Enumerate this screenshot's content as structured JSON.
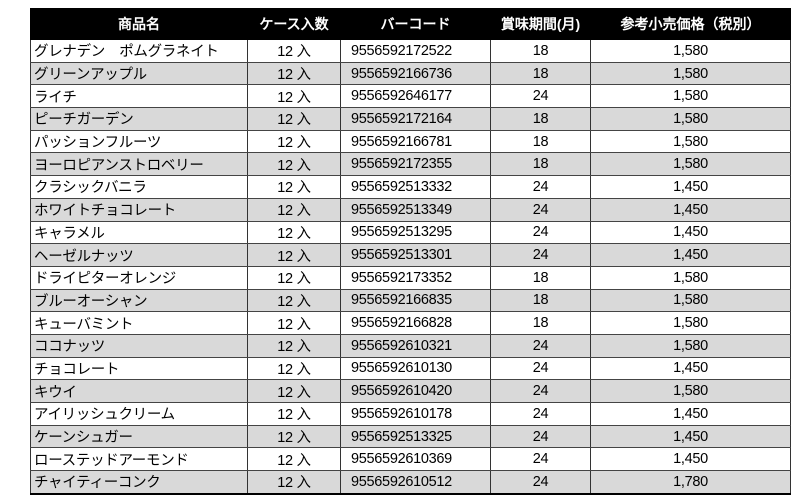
{
  "headers": [
    "商品名",
    "ケース入数",
    "バーコード",
    "賞味期間(月)",
    "参考小売価格（税別）"
  ],
  "rows": [
    {
      "name": "グレナデン　ポムグラネイト",
      "case": "12 入",
      "code": "9556592172522",
      "shelf": "18",
      "price": "1,580"
    },
    {
      "name": "グリーンアップル",
      "case": "12 入",
      "code": "9556592166736",
      "shelf": "18",
      "price": "1,580"
    },
    {
      "name": "ライチ",
      "case": "12 入",
      "code": "9556592646177",
      "shelf": "24",
      "price": "1,580"
    },
    {
      "name": "ピーチガーデン",
      "case": "12 入",
      "code": "9556592172164",
      "shelf": "18",
      "price": "1,580"
    },
    {
      "name": "パッションフルーツ",
      "case": "12 入",
      "code": "9556592166781",
      "shelf": "18",
      "price": "1,580"
    },
    {
      "name": "ヨーロピアンストロベリー",
      "case": "12 入",
      "code": "9556592172355",
      "shelf": "18",
      "price": "1,580"
    },
    {
      "name": "クラシックバニラ",
      "case": "12 入",
      "code": "9556592513332",
      "shelf": "24",
      "price": "1,450"
    },
    {
      "name": "ホワイトチョコレート",
      "case": "12 入",
      "code": "9556592513349",
      "shelf": "24",
      "price": "1,450"
    },
    {
      "name": "キャラメル",
      "case": "12 入",
      "code": "9556592513295",
      "shelf": "24",
      "price": "1,450"
    },
    {
      "name": "ヘーゼルナッツ",
      "case": "12 入",
      "code": "9556592513301",
      "shelf": "24",
      "price": "1,450"
    },
    {
      "name": "ドライピターオレンジ",
      "case": "12 入",
      "code": "9556592173352",
      "shelf": "18",
      "price": "1,580"
    },
    {
      "name": "ブルーオーシャン",
      "case": "12 入",
      "code": "9556592166835",
      "shelf": "18",
      "price": "1,580"
    },
    {
      "name": "キューバミント",
      "case": "12 入",
      "code": "9556592166828",
      "shelf": "18",
      "price": "1,580"
    },
    {
      "name": "ココナッツ",
      "case": "12 入",
      "code": "9556592610321",
      "shelf": "24",
      "price": "1,580"
    },
    {
      "name": "チョコレート",
      "case": "12 入",
      "code": "9556592610130",
      "shelf": "24",
      "price": "1,450"
    },
    {
      "name": "キウイ",
      "case": "12 入",
      "code": "9556592610420",
      "shelf": "24",
      "price": "1,580"
    },
    {
      "name": "アイリッシュクリーム",
      "case": "12 入",
      "code": "9556592610178",
      "shelf": "24",
      "price": "1,450"
    },
    {
      "name": "ケーンシュガー",
      "case": "12 入",
      "code": "9556592513325",
      "shelf": "24",
      "price": "1,450"
    },
    {
      "name": "ローステッドアーモンド",
      "case": "12 入",
      "code": "9556592610369",
      "shelf": "24",
      "price": "1,450"
    },
    {
      "name": "チャイティーコンク",
      "case": "12 入",
      "code": "9556592610512",
      "shelf": "24",
      "price": "1,780"
    }
  ],
  "colors": {
    "header_bg": "#000000",
    "header_text": "#ffffff",
    "alt_row_bg": "#d9d9d9"
  }
}
